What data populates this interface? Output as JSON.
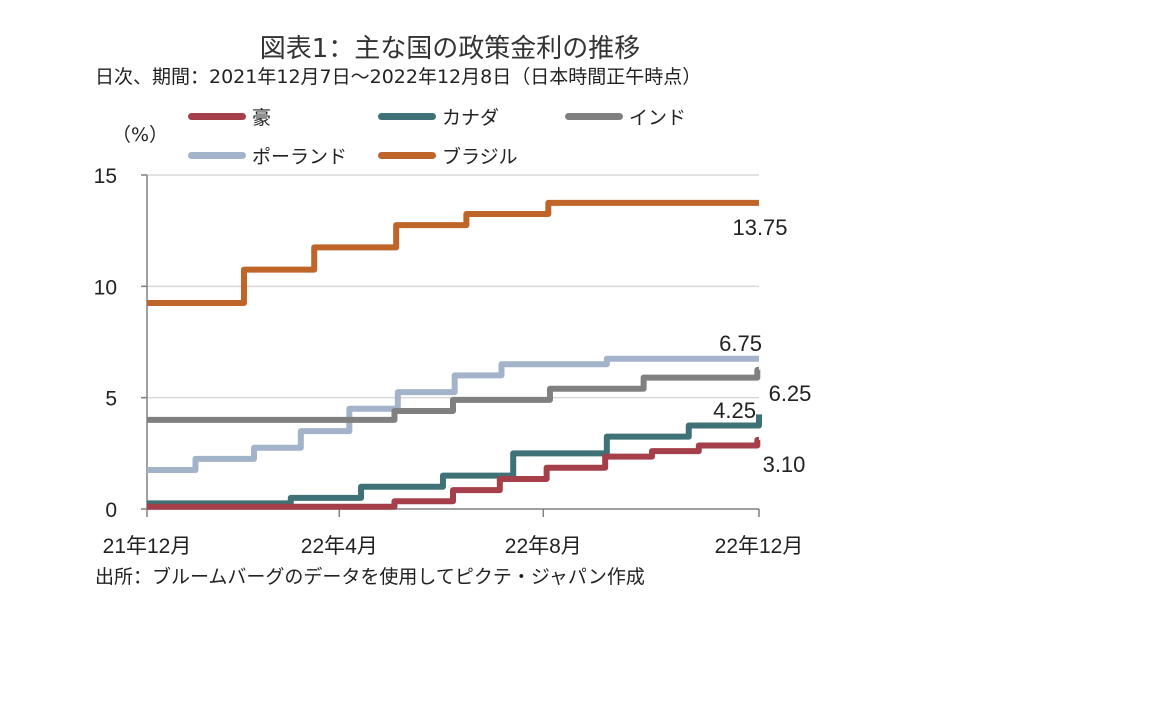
{
  "chart_data": {
    "type": "line",
    "title": "図表1：主な国の政策金利の推移",
    "subtitle": "日次、期間：2021年12月7日～2022年12月8日（日本時間正午時点）",
    "ylabel": "（%）",
    "ylim": [
      0,
      15
    ],
    "yticks": [
      "0",
      "5",
      "10",
      "15"
    ],
    "xlim": [
      "2021-12-07",
      "2022-12-08"
    ],
    "xticks": [
      {
        "date": "2021-12-07",
        "label": "21年12月"
      },
      {
        "date": "2022-04-01",
        "label": "22年4月"
      },
      {
        "date": "2022-08-01",
        "label": "22年8月"
      },
      {
        "date": "2022-12-08",
        "label": "22年12月"
      }
    ],
    "grid": "horizontal",
    "legend_position": "top",
    "step": true,
    "series": [
      {
        "name": "豪",
        "color": "#A5404A",
        "end_label": "3.10",
        "steps": [
          [
            "2021-12-07",
            0.1
          ],
          [
            "2022-05-04",
            0.35
          ],
          [
            "2022-06-08",
            0.85
          ],
          [
            "2022-07-06",
            1.35
          ],
          [
            "2022-08-03",
            1.85
          ],
          [
            "2022-09-07",
            2.35
          ],
          [
            "2022-10-05",
            2.6
          ],
          [
            "2022-11-02",
            2.85
          ],
          [
            "2022-12-07",
            3.1
          ]
        ]
      },
      {
        "name": "カナダ",
        "color": "#3F7277",
        "end_label": "4.25",
        "steps": [
          [
            "2021-12-07",
            0.25
          ],
          [
            "2022-03-03",
            0.5
          ],
          [
            "2022-04-14",
            1.0
          ],
          [
            "2022-06-02",
            1.5
          ],
          [
            "2022-07-14",
            2.5
          ],
          [
            "2022-09-08",
            3.25
          ],
          [
            "2022-10-27",
            3.75
          ],
          [
            "2022-12-08",
            4.25
          ]
        ]
      },
      {
        "name": "インド",
        "color": "#808080",
        "end_label": "6.25",
        "steps": [
          [
            "2021-12-07",
            4.0
          ],
          [
            "2022-05-04",
            4.4
          ],
          [
            "2022-06-08",
            4.9
          ],
          [
            "2022-08-05",
            5.4
          ],
          [
            "2022-09-30",
            5.9
          ],
          [
            "2022-12-07",
            6.25
          ]
        ]
      },
      {
        "name": "ポーランド",
        "color": "#A3B4CA",
        "end_label": "6.75",
        "steps": [
          [
            "2021-12-07",
            1.75
          ],
          [
            "2022-01-05",
            2.25
          ],
          [
            "2022-02-09",
            2.75
          ],
          [
            "2022-03-09",
            3.5
          ],
          [
            "2022-04-07",
            4.5
          ],
          [
            "2022-05-06",
            5.25
          ],
          [
            "2022-06-09",
            6.0
          ],
          [
            "2022-07-07",
            6.5
          ],
          [
            "2022-09-08",
            6.75
          ]
        ]
      },
      {
        "name": "ブラジル",
        "color": "#C0652A",
        "end_label": "13.75",
        "steps": [
          [
            "2021-12-07",
            9.25
          ],
          [
            "2022-02-03",
            10.75
          ],
          [
            "2022-03-17",
            11.75
          ],
          [
            "2022-05-05",
            12.75
          ],
          [
            "2022-06-16",
            13.25
          ],
          [
            "2022-08-04",
            13.75
          ]
        ]
      }
    ],
    "source": "出所：ブルームバーグのデータを使用してピクテ・ジャパン作成"
  }
}
